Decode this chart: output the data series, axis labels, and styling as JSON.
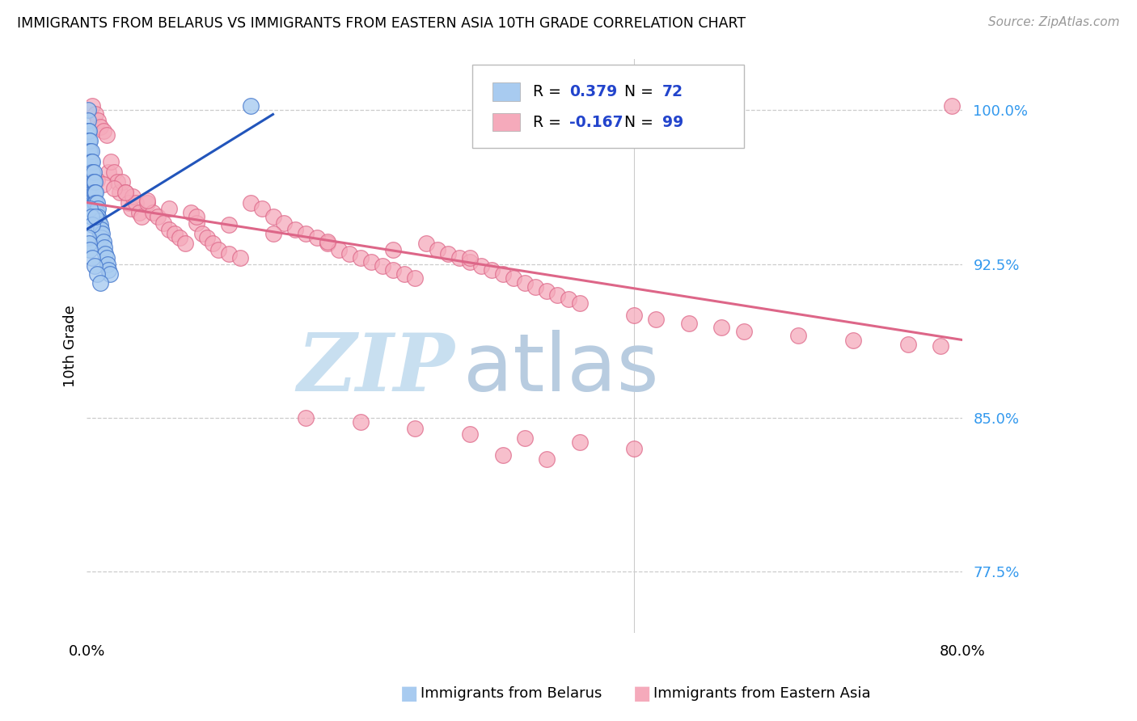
{
  "title": "IMMIGRANTS FROM BELARUS VS IMMIGRANTS FROM EASTERN ASIA 10TH GRADE CORRELATION CHART",
  "source": "Source: ZipAtlas.com",
  "ylabel": "10th Grade",
  "yticks": [
    0.775,
    0.85,
    0.925,
    1.0
  ],
  "ytick_labels": [
    "77.5%",
    "85.0%",
    "92.5%",
    "100.0%"
  ],
  "xlim": [
    0.0,
    0.8
  ],
  "ylim": [
    0.745,
    1.025
  ],
  "R_belarus": 0.379,
  "N_belarus": 72,
  "R_eastern_asia": -0.167,
  "N_eastern_asia": 99,
  "color_belarus_face": "#A8CBF0",
  "color_belarus_edge": "#4477CC",
  "color_eastern_asia_face": "#F5AABB",
  "color_eastern_asia_edge": "#DD6688",
  "trendline_belarus": "#2255BB",
  "trendline_eastern_asia": "#DD6688",
  "watermark_zip_color": "#C8DFF0",
  "watermark_atlas_color": "#B8CCE0",
  "background_color": "#FFFFFF",
  "legend_val_color": "#2244CC",
  "belarus_x": [
    0.001,
    0.001,
    0.001,
    0.001,
    0.001,
    0.001,
    0.001,
    0.001,
    0.001,
    0.001,
    0.002,
    0.002,
    0.002,
    0.002,
    0.002,
    0.002,
    0.002,
    0.002,
    0.003,
    0.003,
    0.003,
    0.003,
    0.003,
    0.003,
    0.004,
    0.004,
    0.004,
    0.004,
    0.005,
    0.005,
    0.005,
    0.005,
    0.006,
    0.006,
    0.006,
    0.007,
    0.007,
    0.007,
    0.008,
    0.008,
    0.008,
    0.009,
    0.009,
    0.01,
    0.01,
    0.01,
    0.011,
    0.011,
    0.012,
    0.012,
    0.013,
    0.013,
    0.014,
    0.015,
    0.016,
    0.017,
    0.018,
    0.019,
    0.02,
    0.021,
    0.003,
    0.004,
    0.005,
    0.001,
    0.002,
    0.003,
    0.005,
    0.007,
    0.009,
    0.012,
    0.15,
    0.008
  ],
  "belarus_y": [
    1.0,
    0.995,
    0.99,
    0.985,
    0.98,
    0.975,
    0.97,
    0.965,
    0.96,
    0.955,
    0.99,
    0.985,
    0.98,
    0.975,
    0.97,
    0.965,
    0.96,
    0.955,
    0.985,
    0.98,
    0.975,
    0.97,
    0.965,
    0.96,
    0.98,
    0.975,
    0.97,
    0.965,
    0.975,
    0.97,
    0.965,
    0.96,
    0.97,
    0.965,
    0.96,
    0.965,
    0.96,
    0.955,
    0.96,
    0.955,
    0.95,
    0.955,
    0.95,
    0.952,
    0.948,
    0.944,
    0.946,
    0.942,
    0.944,
    0.94,
    0.942,
    0.938,
    0.94,
    0.936,
    0.933,
    0.93,
    0.928,
    0.925,
    0.922,
    0.92,
    0.952,
    0.948,
    0.944,
    0.938,
    0.935,
    0.932,
    0.928,
    0.924,
    0.92,
    0.916,
    1.002,
    0.948
  ],
  "eastern_asia_x": [
    0.005,
    0.008,
    0.01,
    0.012,
    0.015,
    0.018,
    0.02,
    0.022,
    0.025,
    0.028,
    0.03,
    0.032,
    0.035,
    0.038,
    0.04,
    0.042,
    0.045,
    0.048,
    0.05,
    0.055,
    0.06,
    0.065,
    0.07,
    0.075,
    0.08,
    0.085,
    0.09,
    0.095,
    0.1,
    0.105,
    0.11,
    0.115,
    0.12,
    0.13,
    0.14,
    0.15,
    0.16,
    0.17,
    0.18,
    0.19,
    0.2,
    0.21,
    0.22,
    0.23,
    0.24,
    0.25,
    0.26,
    0.27,
    0.28,
    0.29,
    0.3,
    0.31,
    0.32,
    0.33,
    0.34,
    0.35,
    0.36,
    0.37,
    0.38,
    0.39,
    0.4,
    0.41,
    0.42,
    0.43,
    0.44,
    0.45,
    0.5,
    0.52,
    0.55,
    0.58,
    0.6,
    0.65,
    0.7,
    0.75,
    0.78,
    0.79,
    0.003,
    0.006,
    0.009,
    0.015,
    0.025,
    0.035,
    0.055,
    0.075,
    0.1,
    0.13,
    0.17,
    0.22,
    0.28,
    0.35,
    0.2,
    0.25,
    0.3,
    0.35,
    0.4,
    0.45,
    0.5,
    0.38,
    0.42
  ],
  "eastern_asia_y": [
    1.002,
    0.998,
    0.995,
    0.992,
    0.99,
    0.988,
    0.97,
    0.975,
    0.97,
    0.965,
    0.96,
    0.965,
    0.96,
    0.955,
    0.952,
    0.958,
    0.955,
    0.95,
    0.948,
    0.955,
    0.95,
    0.948,
    0.945,
    0.942,
    0.94,
    0.938,
    0.935,
    0.95,
    0.945,
    0.94,
    0.938,
    0.935,
    0.932,
    0.93,
    0.928,
    0.955,
    0.952,
    0.948,
    0.945,
    0.942,
    0.94,
    0.938,
    0.935,
    0.932,
    0.93,
    0.928,
    0.926,
    0.924,
    0.922,
    0.92,
    0.918,
    0.935,
    0.932,
    0.93,
    0.928,
    0.926,
    0.924,
    0.922,
    0.92,
    0.918,
    0.916,
    0.914,
    0.912,
    0.91,
    0.908,
    0.906,
    0.9,
    0.898,
    0.896,
    0.894,
    0.892,
    0.89,
    0.888,
    0.886,
    0.885,
    1.002,
    0.97,
    0.968,
    0.966,
    0.964,
    0.962,
    0.96,
    0.956,
    0.952,
    0.948,
    0.944,
    0.94,
    0.936,
    0.932,
    0.928,
    0.85,
    0.848,
    0.845,
    0.842,
    0.84,
    0.838,
    0.835,
    0.832,
    0.83
  ],
  "trendline_ea_x0": 0.0,
  "trendline_ea_x1": 0.8,
  "trendline_ea_y0": 0.955,
  "trendline_ea_y1": 0.888,
  "trendline_b_x0": 0.0,
  "trendline_b_x1": 0.17,
  "trendline_b_y0": 0.942,
  "trendline_b_y1": 0.998
}
